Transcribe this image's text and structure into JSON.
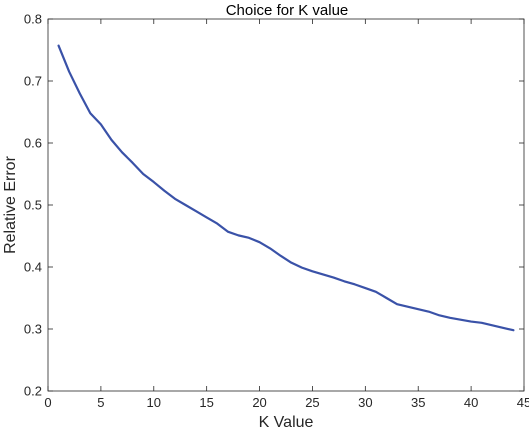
{
  "chart_data": {
    "type": "line",
    "title": "Choice for K value",
    "xlabel": "K Value",
    "ylabel": "Relative Error",
    "xlim": [
      0,
      45
    ],
    "ylim": [
      0.2,
      0.8
    ],
    "xticks": [
      0,
      5,
      10,
      15,
      20,
      25,
      30,
      35,
      40,
      45
    ],
    "yticks": [
      0.2,
      0.3,
      0.4,
      0.5,
      0.6,
      0.7,
      0.8
    ],
    "xtick_labels": [
      "0",
      "5",
      "10",
      "15",
      "20",
      "25",
      "30",
      "35",
      "40",
      "45"
    ],
    "ytick_labels": [
      "0.2",
      "0.3",
      "0.4",
      "0.5",
      "0.6",
      "0.7",
      "0.8"
    ],
    "grid": false,
    "series": [
      {
        "color": "#3a52a8",
        "x": [
          1,
          2,
          3,
          4,
          5,
          6,
          7,
          8,
          9,
          10,
          11,
          12,
          13,
          14,
          15,
          16,
          17,
          18,
          19,
          20,
          21,
          22,
          23,
          24,
          25,
          26,
          27,
          28,
          29,
          30,
          31,
          32,
          33,
          34,
          35,
          36,
          37,
          38,
          39,
          40,
          41,
          42,
          43,
          44
        ],
        "y": [
          0.757,
          0.715,
          0.68,
          0.648,
          0.63,
          0.605,
          0.585,
          0.568,
          0.55,
          0.537,
          0.523,
          0.51,
          0.5,
          0.49,
          0.48,
          0.47,
          0.457,
          0.451,
          0.447,
          0.44,
          0.43,
          0.418,
          0.407,
          0.399,
          0.393,
          0.388,
          0.383,
          0.377,
          0.372,
          0.366,
          0.36,
          0.35,
          0.34,
          0.336,
          0.332,
          0.328,
          0.322,
          0.318,
          0.315,
          0.312,
          0.31,
          0.306,
          0.302,
          0.298
        ]
      }
    ]
  }
}
